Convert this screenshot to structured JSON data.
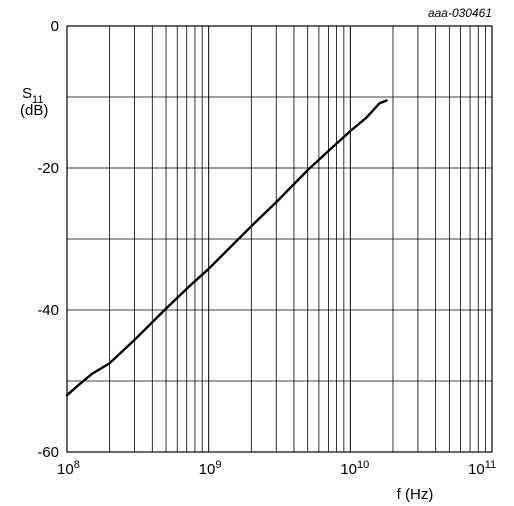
{
  "chart_data": {
    "type": "line",
    "figure_code": "aaa-030461",
    "xlabel": "f (Hz)",
    "ylabel_sym": "S",
    "ylabel_sub": "11",
    "ylabel_unit": "(dB)",
    "x_scale": "log",
    "xlim": [
      100000000,
      100000000000
    ],
    "ylim": [
      -60,
      0
    ],
    "grid": true,
    "x_ticks": [
      {
        "base": "10",
        "exp": "8",
        "value": 100000000
      },
      {
        "base": "10",
        "exp": "9",
        "value": 1000000000
      },
      {
        "base": "10",
        "exp": "10",
        "value": 10000000000
      },
      {
        "base": "10",
        "exp": "11",
        "value": 100000000000
      }
    ],
    "y_ticks": [
      {
        "label": "0",
        "value": 0
      },
      {
        "label": "-20",
        "value": -20
      },
      {
        "label": "-40",
        "value": -40
      },
      {
        "label": "-60",
        "value": -60
      }
    ],
    "y_gridlines": [
      0,
      -10,
      -20,
      -30,
      -40,
      -50,
      -60
    ],
    "series": [
      {
        "color": "#000000",
        "x": [
          100000000,
          120000000,
          150000000,
          200000000,
          300000000,
          500000000,
          700000000,
          1000000000,
          2000000000,
          3000000000,
          5000000000,
          7000000000,
          10000000000,
          13000000000,
          16000000000,
          18000000000
        ],
        "y": [
          -52,
          -50.6,
          -49,
          -47.5,
          -44.2,
          -39.8,
          -37.0,
          -34.2,
          -28.2,
          -24.8,
          -20.3,
          -17.6,
          -14.8,
          -12.9,
          -10.9,
          -10.5
        ]
      }
    ]
  }
}
